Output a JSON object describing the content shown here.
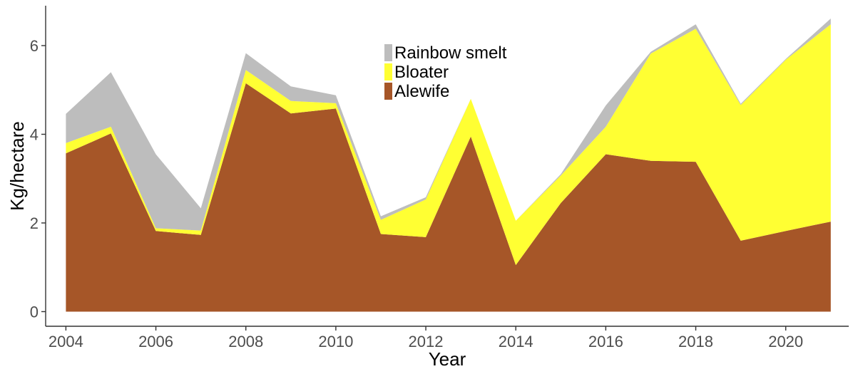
{
  "chart_data": {
    "type": "area",
    "stacked": true,
    "title": "",
    "xlabel": "Year",
    "ylabel": "Kg/hectare",
    "x": [
      2004,
      2005,
      2006,
      2007,
      2008,
      2009,
      2010,
      2011,
      2012,
      2013,
      2014,
      2015,
      2016,
      2017,
      2018,
      2019,
      2020,
      2021
    ],
    "xlim": [
      2003.55,
      2021.4
    ],
    "ylim": [
      -0.33,
      6.9
    ],
    "xticks": [
      2004,
      2006,
      2008,
      2010,
      2012,
      2014,
      2016,
      2018,
      2020
    ],
    "xtick_labels": [
      "2004",
      "2006",
      "2008",
      "2010",
      "2012",
      "2014",
      "2016",
      "2018",
      "2020"
    ],
    "yticks": [
      0,
      2,
      4,
      6
    ],
    "ytick_labels": [
      "0",
      "2",
      "4",
      "6"
    ],
    "grid": false,
    "legend_position": "top-center",
    "series": [
      {
        "name": "Alewife",
        "color": "#A65628",
        "values": [
          3.57,
          4.02,
          1.82,
          1.73,
          5.15,
          4.47,
          4.58,
          1.75,
          1.68,
          3.95,
          1.05,
          2.45,
          3.55,
          3.4,
          3.38,
          1.6,
          1.82,
          2.03
        ]
      },
      {
        "name": "Bloater",
        "color": "#FFFF33",
        "values": [
          0.23,
          0.15,
          0.06,
          0.1,
          0.3,
          0.28,
          0.12,
          0.32,
          0.85,
          0.85,
          1.0,
          0.62,
          0.62,
          2.42,
          3.0,
          3.06,
          3.86,
          4.45
        ]
      },
      {
        "name": "Rainbow smelt",
        "color": "#BDBDBD",
        "values": [
          0.66,
          1.23,
          1.67,
          0.5,
          0.38,
          0.33,
          0.18,
          0.08,
          0.05,
          0.0,
          0.0,
          0.03,
          0.48,
          0.04,
          0.1,
          0.03,
          0.02,
          0.13
        ]
      }
    ],
    "legend_order": [
      "Rainbow smelt",
      "Bloater",
      "Alewife"
    ]
  }
}
